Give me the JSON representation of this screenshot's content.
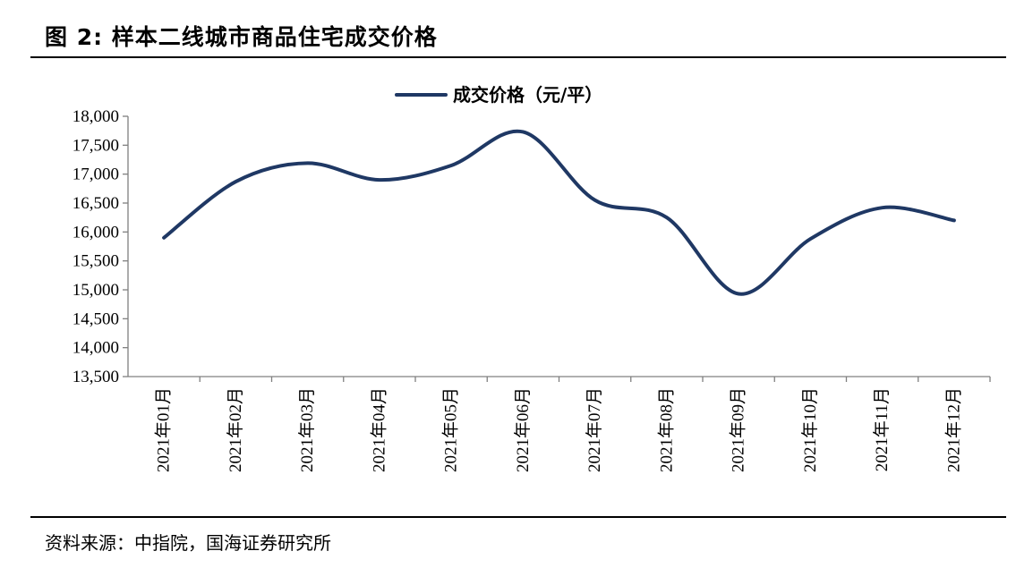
{
  "figure": {
    "title": "图  2:  样本二线城市商品住宅成交价格",
    "source": "资料来源：中指院，国海证券研究所"
  },
  "chart_data": {
    "type": "line",
    "title": "",
    "xlabel": "",
    "ylabel": "",
    "categories": [
      "2021年01月",
      "2021年02月",
      "2021年03月",
      "2021年04月",
      "2021年05月",
      "2021年06月",
      "2021年07月",
      "2021年08月",
      "2021年09月",
      "2021年10月",
      "2021年11月",
      "2021年12月"
    ],
    "series": [
      {
        "name": "成交价格（元/平）",
        "color": "#1f3864",
        "values": [
          15900,
          16870,
          17190,
          16900,
          17150,
          17730,
          16550,
          16250,
          14930,
          15880,
          16420,
          16200
        ]
      }
    ],
    "ylim": [
      13500,
      18000
    ],
    "yticks": [
      13500,
      14000,
      14500,
      15000,
      15500,
      16000,
      16500,
      17000,
      17500,
      18000
    ],
    "ytick_labels": [
      "13,500",
      "14,000",
      "14,500",
      "15,000",
      "15,500",
      "16,000",
      "16,500",
      "17,000",
      "17,500",
      "18,000"
    ],
    "grid": false,
    "legend_position": "top-center",
    "smooth": true
  }
}
